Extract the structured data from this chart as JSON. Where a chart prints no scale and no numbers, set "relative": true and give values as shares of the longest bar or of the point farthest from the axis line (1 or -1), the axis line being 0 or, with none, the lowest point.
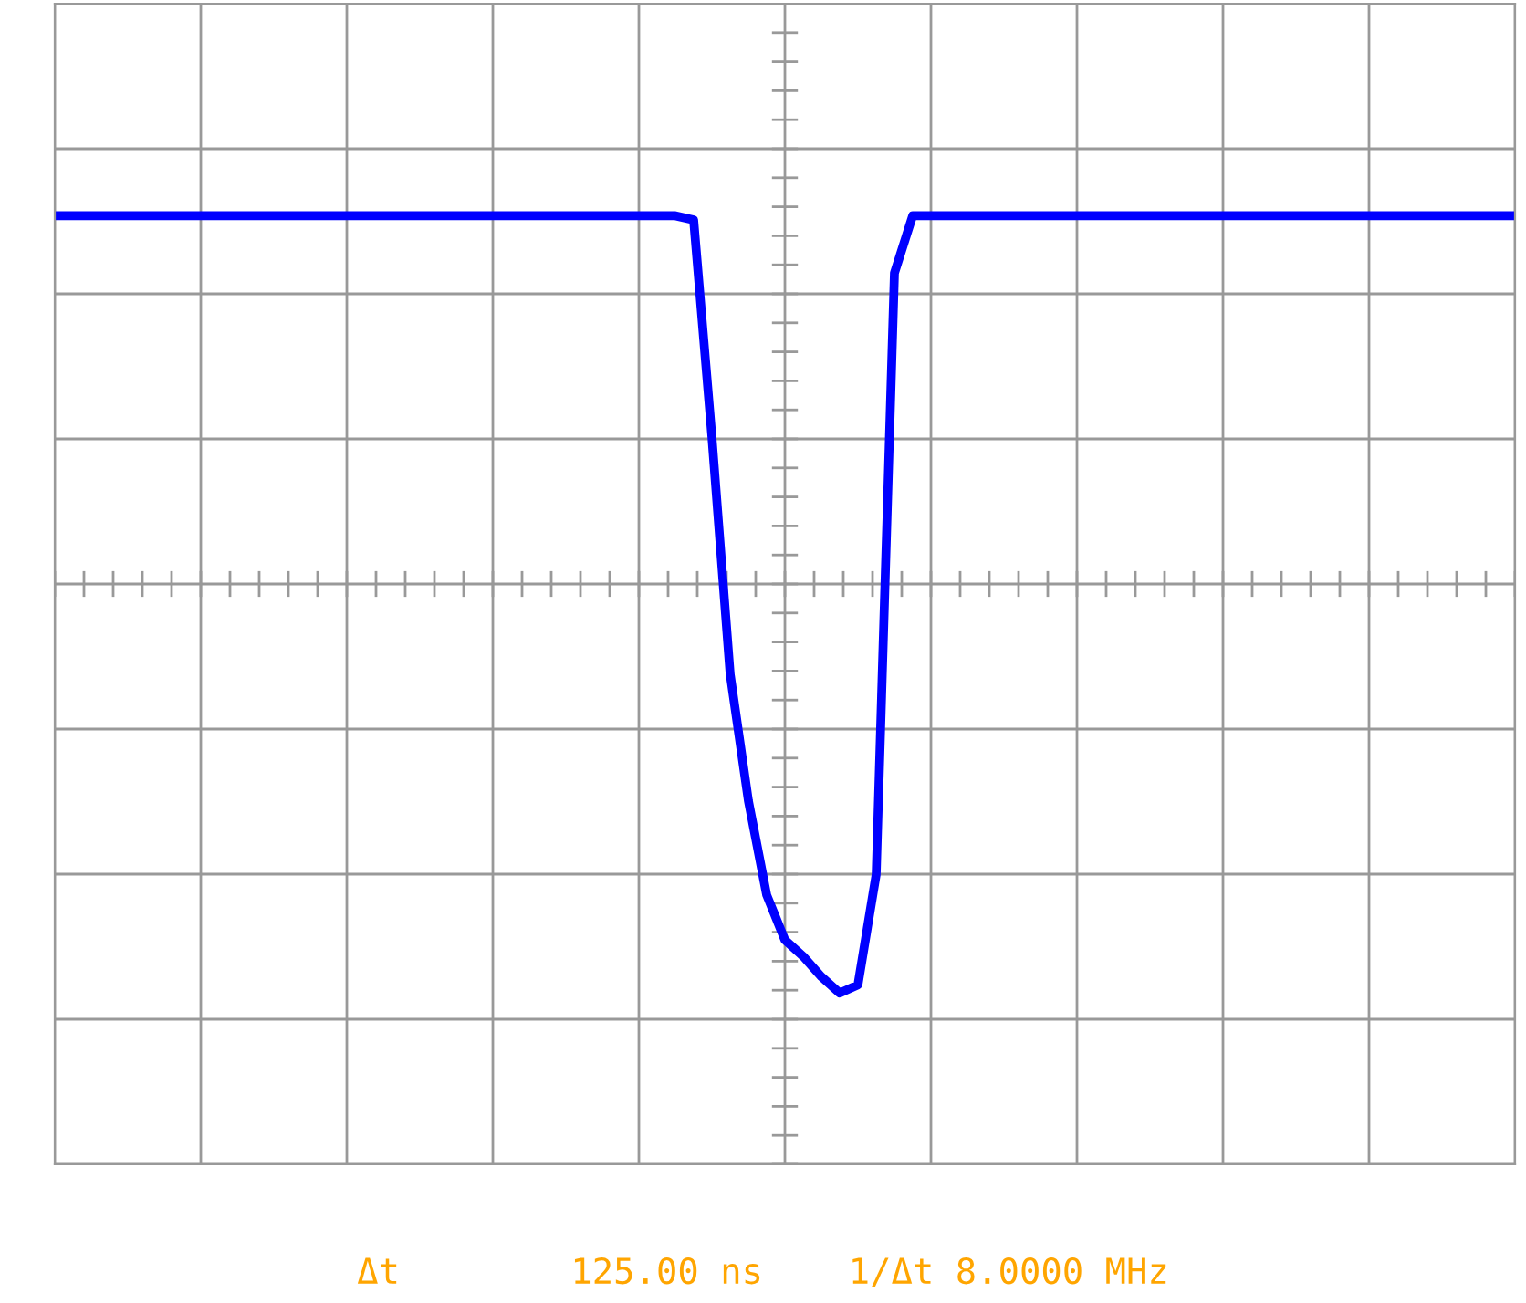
{
  "chart_data": {
    "type": "line",
    "relative": true,
    "grid": true,
    "marker": "none",
    "line_style": "solid",
    "categories": [
      null,
      null,
      null,
      null,
      null,
      null,
      null,
      null,
      null,
      null,
      null,
      null,
      null,
      null,
      null,
      null,
      null,
      null,
      null,
      null,
      null,
      null,
      null,
      null,
      null,
      null,
      null,
      null,
      null,
      null,
      null,
      null,
      null,
      null,
      null,
      null,
      null,
      null,
      null,
      null,
      null,
      null,
      null,
      null,
      null,
      null,
      null,
      null,
      null,
      null,
      null,
      null,
      null,
      null,
      null,
      null,
      null,
      null,
      null,
      null,
      null,
      null,
      null,
      null,
      null,
      null,
      null,
      null,
      null,
      null,
      null,
      null,
      null,
      null,
      null,
      null,
      null,
      null,
      null,
      null,
      null
    ],
    "series": [
      {
        "color": "#0000ff",
        "values": [
          0.9,
          0.9,
          0.9,
          0.9,
          0.9,
          0.9,
          0.9,
          0.9,
          0.9,
          0.9,
          0.9,
          0.9,
          0.9,
          0.9,
          0.9,
          0.9,
          0.9,
          0.9,
          0.9,
          0.9,
          0.9,
          0.9,
          0.9,
          0.9,
          0.9,
          0.9,
          0.9,
          0.9,
          0.9,
          0.9,
          0.9,
          0.9,
          0.9,
          0.9,
          0.9,
          0.89,
          0.36,
          -0.22,
          -0.53,
          -0.76,
          -0.87,
          -0.91,
          -0.96,
          -1,
          -0.98,
          -0.71,
          0.76,
          0.9,
          0.9,
          0.9,
          0.9,
          0.9,
          0.9,
          0.9,
          0.9,
          0.9,
          0.9,
          0.9,
          0.9,
          0.9,
          0.9,
          0.9,
          0.9,
          0.9,
          0.9,
          0.9,
          0.9,
          0.9,
          0.9,
          0.9,
          0.9,
          0.9,
          0.9,
          0.9,
          0.9,
          0.9,
          0.9,
          0.9,
          0.9,
          0.9,
          0.9
        ]
      }
    ],
    "annotations": [
      "Δt        125.00 ns    1/Δt 8.0000 MHz"
    ]
  }
}
